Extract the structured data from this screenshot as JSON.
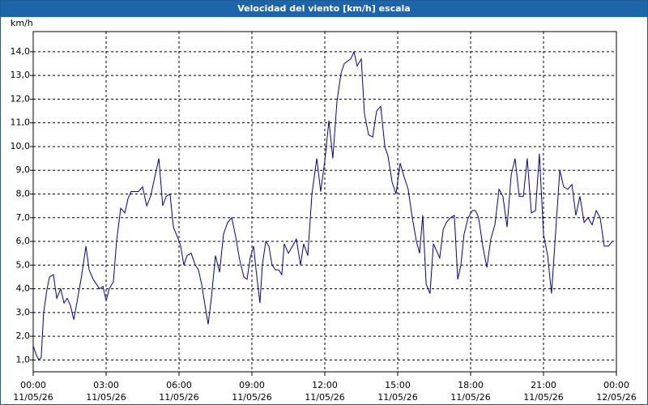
{
  "chart_data": {
    "type": "line",
    "title": "Velocidad del viento [km/h] escala",
    "ylabel": "km/h",
    "grid": true,
    "color": "#0000a0",
    "xlim": [
      0,
      24
    ],
    "ylim": [
      0.5,
      14.85
    ],
    "xticks": [
      {
        "value": 0,
        "label": "00:00",
        "date": "11/05/26"
      },
      {
        "value": 3,
        "label": "03:00",
        "date": "11/05/26"
      },
      {
        "value": 6,
        "label": "06:00",
        "date": "11/05/26"
      },
      {
        "value": 9,
        "label": "09:00",
        "date": "11/05/26"
      },
      {
        "value": 12,
        "label": "12:00",
        "date": "11/05/26"
      },
      {
        "value": 15,
        "label": "15:00",
        "date": "11/05/26"
      },
      {
        "value": 18,
        "label": "18:00",
        "date": "11/05/26"
      },
      {
        "value": 21,
        "label": "21:00",
        "date": "11/05/26"
      },
      {
        "value": 24,
        "label": "00:00",
        "date": "12/05/26"
      }
    ],
    "yticks": [
      {
        "value": 1,
        "label": "1,0"
      },
      {
        "value": 2,
        "label": "2,0"
      },
      {
        "value": 3,
        "label": "3,0"
      },
      {
        "value": 4,
        "label": "4,0"
      },
      {
        "value": 5,
        "label": "5,0"
      },
      {
        "value": 6,
        "label": "6,0"
      },
      {
        "value": 7,
        "label": "7,0"
      },
      {
        "value": 8,
        "label": "8,0"
      },
      {
        "value": 9,
        "label": "9,0"
      },
      {
        "value": 10,
        "label": "10,0"
      },
      {
        "value": 11,
        "label": "11,0"
      },
      {
        "value": 12,
        "label": "12,0"
      },
      {
        "value": 13,
        "label": "13,0"
      },
      {
        "value": 14,
        "label": "14,0"
      }
    ],
    "x": [
      0,
      0.13,
      0.23,
      0.33,
      0.43,
      0.57,
      0.67,
      0.83,
      0.97,
      1.13,
      1.27,
      1.4,
      1.53,
      1.67,
      1.83,
      2,
      2.17,
      2.3,
      2.47,
      2.6,
      2.73,
      2.87,
      3,
      3.13,
      3.3,
      3.43,
      3.6,
      3.77,
      3.9,
      4.03,
      4.17,
      4.33,
      4.5,
      4.67,
      4.83,
      5,
      5.17,
      5.33,
      5.47,
      5.63,
      5.77,
      5.93,
      6.07,
      6.2,
      6.33,
      6.5,
      6.67,
      6.8,
      6.93,
      7.07,
      7.2,
      7.33,
      7.5,
      7.67,
      7.83,
      8,
      8.17,
      8.33,
      8.5,
      8.67,
      8.8,
      8.93,
      9.07,
      9.17,
      9.33,
      9.43,
      9.57,
      9.7,
      9.83,
      9.97,
      10.1,
      10.23,
      10.33,
      10.5,
      10.67,
      10.83,
      11,
      11.13,
      11.3,
      11.47,
      11.67,
      11.83,
      12,
      12.17,
      12.33,
      12.5,
      12.67,
      12.8,
      12.93,
      13.07,
      13.2,
      13.33,
      13.5,
      13.63,
      13.8,
      13.97,
      14.13,
      14.3,
      14.47,
      14.6,
      14.77,
      14.93,
      15.1,
      15.27,
      15.43,
      15.6,
      15.77,
      15.9,
      16.03,
      16.17,
      16.33,
      16.47,
      16.6,
      16.73,
      16.87,
      17,
      17.17,
      17.33,
      17.47,
      17.6,
      17.73,
      17.9,
      18.07,
      18.2,
      18.33,
      18.5,
      18.67,
      18.83,
      19,
      19.17,
      19.33,
      19.5,
      19.67,
      19.83,
      20,
      20.17,
      20.33,
      20.5,
      20.67,
      20.83,
      21,
      21.17,
      21.33,
      21.5,
      21.67,
      21.83,
      22,
      22.17,
      22.33,
      22.5,
      22.67,
      22.83,
      23,
      23.17,
      23.33,
      23.5,
      23.67,
      23.83
    ],
    "values": [
      1.6,
      1.2,
      1.0,
      1.1,
      3.0,
      4.0,
      4.5,
      4.6,
      3.6,
      4.0,
      3.4,
      3.6,
      3.3,
      2.7,
      3.6,
      4.6,
      5.8,
      4.8,
      4.4,
      4.2,
      4.0,
      4.1,
      3.5,
      4.0,
      4.3,
      6.0,
      7.4,
      7.2,
      7.8,
      8.1,
      8.1,
      8.1,
      8.3,
      7.5,
      7.9,
      8.7,
      9.5,
      7.5,
      7.9,
      8.0,
      6.6,
      6.2,
      5.8,
      5.0,
      5.4,
      5.5,
      5.0,
      4.8,
      4.2,
      3.3,
      2.5,
      3.6,
      5.4,
      4.7,
      6.3,
      6.8,
      7.0,
      6.2,
      5.2,
      4.5,
      4.4,
      5.3,
      5.8,
      4.8,
      3.4,
      5.0,
      6.0,
      5.8,
      5.0,
      4.8,
      4.8,
      4.6,
      5.9,
      5.5,
      5.8,
      6.1,
      5.0,
      5.9,
      5.4,
      8.0,
      9.5,
      8.1,
      9.4,
      11.1,
      9.5,
      11.9,
      13.1,
      13.5,
      13.6,
      13.7,
      14.0,
      13.4,
      13.7,
      11.4,
      10.5,
      10.4,
      11.5,
      11.7,
      10.0,
      9.6,
      8.5,
      8.0,
      9.3,
      8.7,
      8.2,
      7.0,
      6.0,
      5.5,
      7.1,
      4.2,
      3.8,
      5.9,
      5.6,
      5.3,
      6.5,
      6.8,
      7.0,
      7.1,
      4.4,
      5.0,
      6.3,
      7.0,
      7.3,
      7.3,
      7.0,
      5.8,
      4.9,
      6.1,
      6.7,
      8.2,
      7.9,
      6.6,
      8.8,
      9.5,
      7.9,
      7.9,
      9.5,
      7.2,
      7.3,
      9.7,
      6.3,
      5.4,
      3.8,
      6.4,
      9.0,
      8.3,
      8.2,
      8.4,
      7.1,
      7.9,
      6.8,
      7.0,
      6.7,
      7.3,
      7.0,
      5.8,
      5.8,
      6.0
    ]
  }
}
